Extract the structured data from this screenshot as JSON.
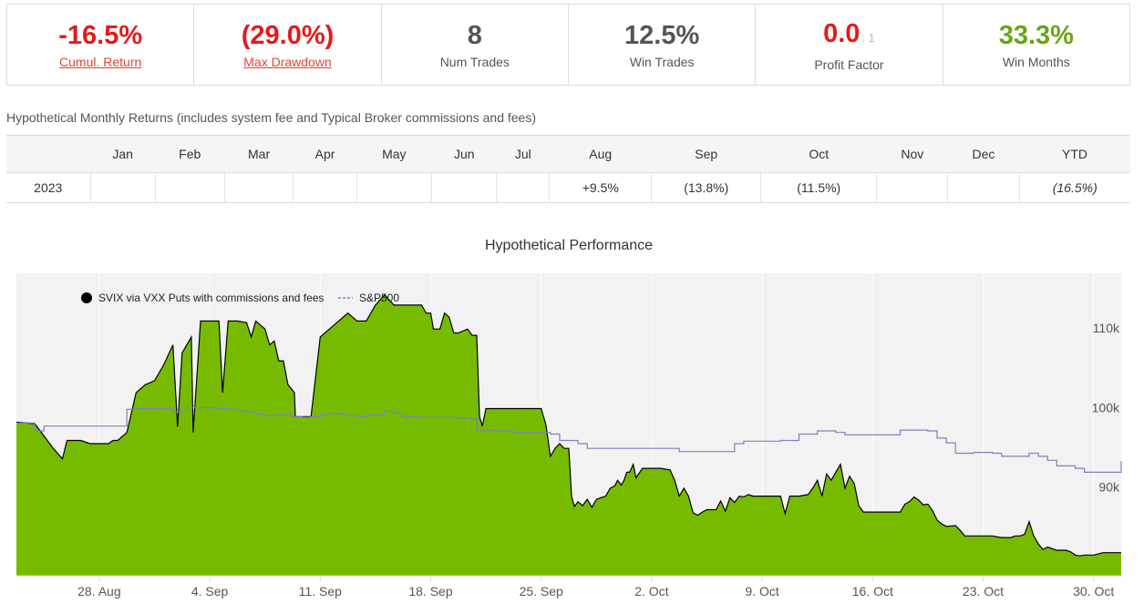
{
  "stats": [
    {
      "value": "-16.5%",
      "label": "Cumul. Return",
      "color": "red",
      "link": true
    },
    {
      "value": "(29.0%)",
      "label": "Max Drawdown",
      "color": "red",
      "link": true
    },
    {
      "value": "8",
      "label": "Num Trades",
      "color": "grey",
      "link": false
    },
    {
      "value": "12.5%",
      "label": "Win Trades",
      "color": "grey",
      "link": false
    },
    {
      "value": "0.0",
      "ratio": ": 1",
      "label": "Profit Factor",
      "color": "red",
      "link": false
    },
    {
      "value": "33.3%",
      "label": "Win Months",
      "color": "green",
      "link": false
    }
  ],
  "monthly": {
    "caption": "Hypothetical Monthly Returns (includes system fee and Typical Broker commissions and fees)",
    "headers": [
      "",
      "Jan",
      "Feb",
      "Mar",
      "Apr",
      "May",
      "Jun",
      "Jul",
      "Aug",
      "Sep",
      "Oct",
      "Nov",
      "Dec",
      "YTD"
    ],
    "row": {
      "year": "2023",
      "cells": [
        "",
        "",
        "",
        "",
        "",
        "",
        "",
        "+9.5%",
        "(13.8%)",
        "(11.5%)",
        "",
        "",
        "(16.5%)"
      ]
    }
  },
  "chart_data": {
    "type": "area",
    "title": "Hypothetical Performance",
    "x_tick_labels": [
      "28. Aug",
      "4. Sep",
      "11. Sep",
      "18. Sep",
      "25. Sep",
      "2. Oct",
      "9. Oct",
      "16. Oct",
      "23. Oct",
      "30. Oct"
    ],
    "y_tick_labels": [
      "90k",
      "100k",
      "110k"
    ],
    "ylim": [
      80000,
      118000
    ],
    "legend": {
      "position": "top-left"
    },
    "series": [
      {
        "name": "SVIX via VXX Puts with commissions and fees",
        "style": "area",
        "color": "#77bb00",
        "points": [
          [
            0,
            99300
          ],
          [
            2,
            99100
          ],
          [
            4,
            96000
          ],
          [
            5,
            94700
          ],
          [
            5.5,
            97000
          ],
          [
            7,
            97000
          ],
          [
            8,
            96600
          ],
          [
            9,
            96600
          ],
          [
            10,
            96600
          ],
          [
            10.5,
            97000
          ],
          [
            11,
            97000
          ],
          [
            12,
            98000
          ],
          [
            13,
            103000
          ],
          [
            14,
            104000
          ],
          [
            15,
            104500
          ],
          [
            16,
            106500
          ],
          [
            17,
            109000
          ],
          [
            17.3,
            103000
          ],
          [
            17.5,
            98700
          ],
          [
            18,
            108000
          ],
          [
            19,
            110000
          ],
          [
            19.2,
            98000
          ],
          [
            20,
            112000
          ],
          [
            21,
            112000
          ],
          [
            22,
            112000
          ],
          [
            22.4,
            103000
          ],
          [
            23,
            112000
          ],
          [
            24,
            112000
          ],
          [
            25,
            111800
          ],
          [
            25.5,
            110000
          ],
          [
            26,
            112000
          ],
          [
            27,
            111000
          ],
          [
            27.5,
            109000
          ],
          [
            28,
            109500
          ],
          [
            28.5,
            107000
          ],
          [
            29,
            107000
          ],
          [
            29.5,
            104000
          ],
          [
            30,
            103300
          ],
          [
            30.2,
            103000
          ],
          [
            30.3,
            100000
          ],
          [
            31,
            100000
          ],
          [
            32,
            100000
          ],
          [
            33,
            110000
          ],
          [
            34,
            111000
          ],
          [
            35,
            112000
          ],
          [
            36,
            113000
          ],
          [
            37,
            112000
          ],
          [
            38,
            112000
          ],
          [
            39,
            114000
          ],
          [
            40,
            115300
          ],
          [
            41,
            114000
          ],
          [
            42,
            114000
          ],
          [
            43,
            114000
          ],
          [
            44,
            114000
          ],
          [
            44.5,
            113000
          ],
          [
            45,
            113000
          ],
          [
            45.3,
            111000
          ],
          [
            46,
            111000
          ],
          [
            46.5,
            113000
          ],
          [
            47,
            112500
          ],
          [
            47.5,
            110500
          ],
          [
            48,
            110500
          ],
          [
            49,
            111000
          ],
          [
            49.5,
            110200
          ],
          [
            50,
            110200
          ],
          [
            50.3,
            100000
          ],
          [
            50.6,
            98800
          ],
          [
            51,
            101000
          ],
          [
            52,
            101000
          ],
          [
            53,
            101000
          ],
          [
            54,
            101000
          ],
          [
            55,
            101000
          ],
          [
            56,
            101000
          ],
          [
            57,
            101000
          ],
          [
            57.5,
            99000
          ],
          [
            58,
            95000
          ],
          [
            58.5,
            96000
          ],
          [
            59,
            96600
          ],
          [
            59.5,
            96000
          ],
          [
            60,
            96000
          ],
          [
            60.3,
            90000
          ],
          [
            60.6,
            88700
          ],
          [
            61,
            89300
          ],
          [
            61.5,
            88800
          ],
          [
            62,
            89600
          ],
          [
            62.5,
            88600
          ],
          [
            63,
            89600
          ],
          [
            64,
            90000
          ],
          [
            64.5,
            91000
          ],
          [
            65,
            91300
          ],
          [
            65.3,
            92000
          ],
          [
            65.7,
            91400
          ],
          [
            66,
            92000
          ],
          [
            66.3,
            93000
          ],
          [
            66.6,
            93000
          ],
          [
            67,
            94000
          ],
          [
            67.3,
            92300
          ],
          [
            68,
            93500
          ],
          [
            69,
            93500
          ],
          [
            70,
            93500
          ],
          [
            71,
            93300
          ],
          [
            71.5,
            92000
          ],
          [
            72,
            90000
          ],
          [
            72.5,
            91000
          ],
          [
            73,
            90000
          ],
          [
            73.5,
            87900
          ],
          [
            74,
            87600
          ],
          [
            74.5,
            88000
          ],
          [
            75,
            88300
          ],
          [
            76,
            88300
          ],
          [
            76.5,
            89400
          ],
          [
            77,
            88100
          ],
          [
            77.5,
            89800
          ],
          [
            78,
            89200
          ],
          [
            78.5,
            90000
          ],
          [
            79,
            89900
          ],
          [
            79.5,
            90200
          ],
          [
            80,
            90000
          ],
          [
            81,
            90000
          ],
          [
            82,
            90000
          ],
          [
            83,
            90000
          ],
          [
            83.5,
            87800
          ],
          [
            84,
            90000
          ],
          [
            85,
            90000
          ],
          [
            86,
            90200
          ],
          [
            86.5,
            91000
          ],
          [
            87,
            92000
          ],
          [
            87.5,
            90000
          ],
          [
            88,
            92800
          ],
          [
            88.5,
            92000
          ],
          [
            89,
            93000
          ],
          [
            89.5,
            94000
          ],
          [
            90,
            91000
          ],
          [
            90.5,
            92500
          ],
          [
            91,
            91600
          ],
          [
            91.5,
            88800
          ],
          [
            92,
            88000
          ],
          [
            93,
            88000
          ],
          [
            94,
            88000
          ],
          [
            95,
            88000
          ],
          [
            96,
            88000
          ],
          [
            96.5,
            89000
          ],
          [
            97,
            89300
          ],
          [
            97.5,
            89900
          ],
          [
            98,
            89500
          ],
          [
            98.5,
            88900
          ],
          [
            99,
            89000
          ],
          [
            99.5,
            88200
          ],
          [
            100,
            87000
          ],
          [
            100.5,
            86500
          ],
          [
            101,
            86200
          ],
          [
            102,
            86300
          ],
          [
            102.5,
            85700
          ],
          [
            103,
            85000
          ],
          [
            104,
            85000
          ],
          [
            105,
            85000
          ],
          [
            106,
            85000
          ],
          [
            107,
            84800
          ],
          [
            108,
            84800
          ],
          [
            108.5,
            85000
          ],
          [
            109,
            85000
          ],
          [
            109.5,
            85200
          ],
          [
            110,
            86800
          ],
          [
            110.5,
            85000
          ],
          [
            111,
            84000
          ],
          [
            111.5,
            83300
          ],
          [
            112,
            83600
          ],
          [
            113,
            83200
          ],
          [
            114,
            83200
          ],
          [
            114.5,
            83000
          ],
          [
            115,
            82600
          ],
          [
            115.5,
            82500
          ],
          [
            116,
            82600
          ],
          [
            117,
            82600
          ],
          [
            118,
            82900
          ],
          [
            119,
            82900
          ],
          [
            120,
            82900
          ]
        ]
      },
      {
        "name": "S&P500",
        "style": "dashed-line",
        "color": "#8080c0",
        "points": [
          [
            0,
            99200
          ],
          [
            2,
            98200
          ],
          [
            3,
            98800
          ],
          [
            5,
            98800
          ],
          [
            7,
            98800
          ],
          [
            9,
            98800
          ],
          [
            10,
            98800
          ],
          [
            11,
            98800
          ],
          [
            12,
            100900
          ],
          [
            13,
            101000
          ],
          [
            15,
            101000
          ],
          [
            17,
            100600
          ],
          [
            18,
            101100
          ],
          [
            20,
            101100
          ],
          [
            22,
            101000
          ],
          [
            23,
            100900
          ],
          [
            24,
            100700
          ],
          [
            25,
            100600
          ],
          [
            26,
            100300
          ],
          [
            27,
            100100
          ],
          [
            28,
            100200
          ],
          [
            29,
            100200
          ],
          [
            30,
            100000
          ],
          [
            31,
            99900
          ],
          [
            32,
            100000
          ],
          [
            33,
            100200
          ],
          [
            34,
            100400
          ],
          [
            35,
            100300
          ],
          [
            36,
            100100
          ],
          [
            37,
            100000
          ],
          [
            38,
            100200
          ],
          [
            39,
            100200
          ],
          [
            40,
            100700
          ],
          [
            41,
            100400
          ],
          [
            42,
            100000
          ],
          [
            43,
            100000
          ],
          [
            44,
            99900
          ],
          [
            45,
            99900
          ],
          [
            46,
            99900
          ],
          [
            47,
            99900
          ],
          [
            48,
            99800
          ],
          [
            49,
            99800
          ],
          [
            50,
            98300
          ],
          [
            51,
            98300
          ],
          [
            52,
            98200
          ],
          [
            53,
            98200
          ],
          [
            54,
            98000
          ],
          [
            55,
            98000
          ],
          [
            56,
            98000
          ],
          [
            57,
            98000
          ],
          [
            58,
            97800
          ],
          [
            59,
            97000
          ],
          [
            60,
            97000
          ],
          [
            61,
            96600
          ],
          [
            62,
            96000
          ],
          [
            63,
            96000
          ],
          [
            64,
            96000
          ],
          [
            65,
            96000
          ],
          [
            66,
            96000
          ],
          [
            67,
            96000
          ],
          [
            68,
            96000
          ],
          [
            69,
            96000
          ],
          [
            70,
            96000
          ],
          [
            71,
            96000
          ],
          [
            72,
            95600
          ],
          [
            73,
            95600
          ],
          [
            74,
            95600
          ],
          [
            75,
            95600
          ],
          [
            76,
            95600
          ],
          [
            77,
            95600
          ],
          [
            78,
            96600
          ],
          [
            79,
            96900
          ],
          [
            80,
            96900
          ],
          [
            81,
            96900
          ],
          [
            82,
            96900
          ],
          [
            83,
            97000
          ],
          [
            84,
            97000
          ],
          [
            85,
            97800
          ],
          [
            86,
            97800
          ],
          [
            87,
            98200
          ],
          [
            88,
            98200
          ],
          [
            89,
            98000
          ],
          [
            90,
            97700
          ],
          [
            91,
            97700
          ],
          [
            92,
            97700
          ],
          [
            93,
            97700
          ],
          [
            94,
            97700
          ],
          [
            95,
            97700
          ],
          [
            96,
            98300
          ],
          [
            97,
            98300
          ],
          [
            98,
            98300
          ],
          [
            99,
            98200
          ],
          [
            100,
            97300
          ],
          [
            101,
            96700
          ],
          [
            102,
            95400
          ],
          [
            103,
            95400
          ],
          [
            104,
            95500
          ],
          [
            105,
            95500
          ],
          [
            106,
            95400
          ],
          [
            107,
            95000
          ],
          [
            108,
            95000
          ],
          [
            109,
            95000
          ],
          [
            110,
            95400
          ],
          [
            111,
            95000
          ],
          [
            112,
            94500
          ],
          [
            113,
            93800
          ],
          [
            114,
            93800
          ],
          [
            115,
            93500
          ],
          [
            116,
            93000
          ],
          [
            117,
            93000
          ],
          [
            118,
            93000
          ],
          [
            119,
            93000
          ],
          [
            120,
            94400
          ]
        ]
      }
    ]
  }
}
